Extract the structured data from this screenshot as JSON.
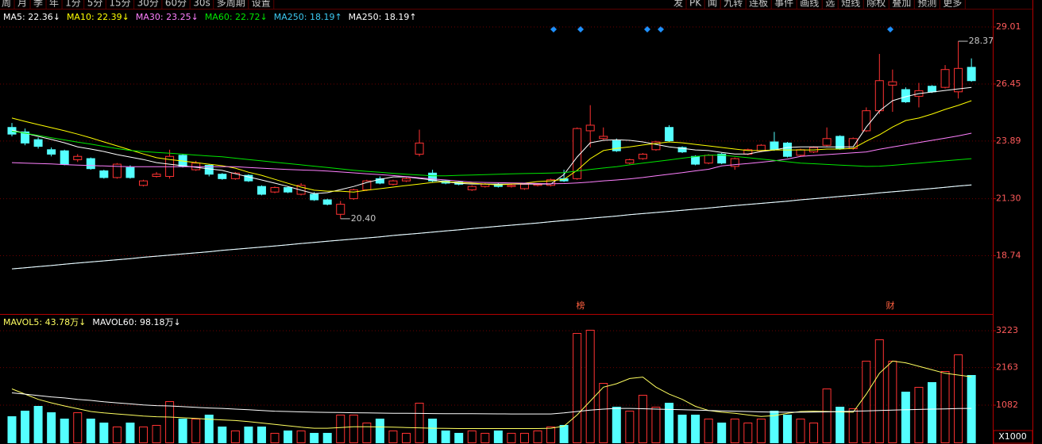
{
  "toolbar_left": [
    "周",
    "月",
    "季",
    "年",
    "1分",
    "5分",
    "15分",
    "30分",
    "60分",
    "30s",
    "多周期",
    "设置"
  ],
  "toolbar_right": [
    "发",
    "PK",
    "闻",
    "九转",
    "连板",
    "事件",
    "画线",
    "选",
    "短线",
    "除权",
    "叠加",
    "预测",
    "更多"
  ],
  "chart_data": [
    {
      "type": "candlestick",
      "up_color": "#ff3232",
      "down_color": "#54ffff",
      "ylim": [
        16.16,
        29.51
      ],
      "yticks": [
        {
          "value": 29.01,
          "label": "29.01"
        },
        26.45,
        23.89,
        {
          "value": 21.3,
          "label": "21.30"
        },
        18.74
      ],
      "grid": true,
      "open": [
        24.5,
        24.3,
        23.95,
        23.5,
        23.45,
        23.05,
        23.1,
        22.55,
        22.25,
        22.7,
        21.9,
        22.3,
        22.3,
        23.25,
        22.6,
        22.8,
        22.4,
        22.2,
        22.35,
        21.85,
        21.6,
        21.8,
        21.5,
        21.5,
        21.25,
        20.6,
        21.3,
        21.7,
        22.2,
        21.95,
        22.1,
        23.3,
        22.45,
        22.1,
        22.05,
        21.7,
        21.85,
        21.95,
        21.85,
        21.75,
        21.9,
        21.9,
        22.2,
        22.2,
        24.35,
        24.0,
        23.9,
        22.9,
        23.1,
        23.5,
        24.5,
        23.6,
        23.2,
        22.9,
        23.3,
        22.75,
        23.3,
        23.45,
        23.85,
        23.8,
        23.25,
        23.4,
        23.7,
        24.1,
        23.55,
        24.35,
        25.25,
        26.4,
        26.2,
        25.9,
        26.35,
        26.3,
        26.1,
        27.2
      ],
      "high": [
        24.7,
        24.45,
        24.05,
        23.6,
        23.5,
        23.3,
        23.15,
        22.6,
        22.9,
        22.8,
        22.15,
        22.5,
        23.5,
        23.3,
        23.0,
        22.85,
        22.45,
        22.5,
        22.4,
        21.9,
        21.85,
        21.85,
        22.0,
        21.6,
        21.3,
        21.2,
        21.75,
        22.15,
        22.3,
        22.15,
        22.25,
        24.4,
        22.6,
        22.15,
        22.1,
        21.9,
        22.0,
        22.0,
        21.95,
        22.0,
        22.0,
        22.2,
        22.6,
        24.5,
        25.5,
        24.5,
        24.0,
        23.1,
        23.35,
        23.9,
        24.6,
        23.65,
        23.25,
        23.3,
        23.35,
        23.15,
        23.55,
        23.75,
        24.3,
        23.85,
        23.55,
        23.65,
        24.5,
        24.15,
        24.05,
        25.4,
        27.8,
        27.1,
        26.3,
        26.5,
        26.4,
        27.3,
        28.37,
        27.6
      ],
      "low": [
        24.1,
        23.7,
        23.55,
        23.2,
        22.8,
        22.95,
        22.6,
        22.2,
        22.2,
        22.2,
        21.85,
        22.25,
        22.2,
        22.7,
        22.55,
        22.3,
        22.15,
        22.15,
        22.05,
        21.45,
        21.55,
        21.55,
        21.45,
        21.2,
        21.0,
        20.4,
        21.25,
        21.65,
        21.95,
        21.9,
        22.05,
        23.2,
        22.05,
        21.95,
        21.9,
        21.65,
        21.8,
        21.8,
        21.8,
        21.7,
        21.85,
        21.85,
        22.05,
        22.15,
        23.6,
        23.95,
        23.4,
        22.85,
        23.05,
        23.45,
        23.85,
        23.35,
        22.8,
        22.85,
        22.85,
        22.6,
        23.25,
        23.4,
        23.45,
        23.15,
        23.2,
        23.35,
        23.65,
        23.5,
        23.5,
        24.3,
        25.1,
        25.2,
        25.6,
        25.4,
        26.05,
        26.25,
        25.8,
        26.55
      ],
      "close": [
        24.2,
        23.8,
        23.65,
        23.3,
        22.85,
        23.2,
        22.65,
        22.25,
        22.85,
        22.25,
        22.1,
        22.4,
        23.2,
        22.75,
        22.9,
        22.4,
        22.2,
        22.45,
        22.1,
        21.5,
        21.8,
        21.6,
        21.9,
        21.25,
        21.05,
        21.05,
        21.7,
        22.1,
        22.0,
        22.1,
        22.2,
        23.8,
        22.1,
        22.0,
        21.95,
        21.85,
        21.95,
        21.85,
        21.9,
        21.95,
        21.95,
        22.15,
        22.1,
        24.45,
        24.6,
        24.1,
        23.45,
        23.05,
        23.3,
        23.85,
        23.9,
        23.4,
        22.85,
        23.25,
        22.9,
        23.1,
        23.5,
        23.7,
        23.5,
        23.2,
        23.5,
        23.6,
        24.0,
        23.55,
        24.0,
        25.25,
        26.6,
        26.55,
        25.65,
        26.15,
        26.1,
        27.1,
        27.15,
        26.6
      ],
      "high_label": 28.37,
      "low_label": {
        "value": 20.4,
        "label": "20.40"
      },
      "markers": [
        "榜",
        "财"
      ],
      "series": [
        {
          "name": "MA5: 22.36↓",
          "color": "#ffffff",
          "values": [
            24.38,
            24.24,
            24.1,
            23.96,
            23.81,
            23.63,
            23.53,
            23.42,
            23.28,
            23.17,
            23.06,
            22.92,
            22.85,
            22.78,
            22.71,
            22.64,
            22.57,
            22.42,
            22.28,
            22.14,
            22.0,
            21.85,
            21.68,
            21.53,
            21.57,
            21.71,
            21.85,
            22.03,
            22.17,
            22.28,
            22.28,
            22.21,
            22.14,
            22.06,
            21.99,
            21.96,
            21.96,
            21.96,
            21.96,
            21.96,
            21.96,
            21.96,
            22.39,
            23.17,
            23.81,
            23.92,
            23.95,
            23.92,
            23.85,
            23.74,
            23.63,
            23.56,
            23.49,
            23.46,
            23.38,
            23.31,
            23.31,
            23.42,
            23.49,
            23.6,
            23.63,
            23.63,
            23.63,
            23.63,
            23.63,
            24.52,
            25.24,
            25.7,
            25.88,
            26.02,
            26.09,
            26.16,
            26.23,
            26.3
          ]
        },
        {
          "name": "MA10: 22.39↓",
          "color": "#ffff00",
          "values": [
            24.92,
            24.77,
            24.63,
            24.49,
            24.35,
            24.2,
            24.03,
            23.85,
            23.67,
            23.49,
            23.31,
            23.14,
            23.06,
            22.99,
            22.92,
            22.85,
            22.78,
            22.67,
            22.49,
            22.35,
            22.17,
            21.99,
            21.82,
            21.68,
            21.64,
            21.64,
            21.6,
            21.68,
            21.75,
            21.82,
            21.89,
            21.96,
            22.03,
            22.07,
            22.03,
            22.0,
            21.96,
            21.92,
            21.96,
            22.0,
            22.07,
            22.1,
            22.17,
            22.57,
            23.1,
            23.46,
            23.56,
            23.63,
            23.71,
            23.78,
            23.85,
            23.81,
            23.74,
            23.67,
            23.6,
            23.53,
            23.46,
            23.46,
            23.49,
            23.49,
            23.49,
            23.49,
            23.53,
            23.53,
            23.56,
            23.88,
            24.17,
            24.52,
            24.81,
            24.92,
            25.1,
            25.31,
            25.49,
            25.7
          ]
        },
        {
          "name": "MA30: 23.25↓",
          "color": "#ff80ff",
          "values": [
            22.92,
            22.9,
            22.88,
            22.86,
            22.83,
            22.81,
            22.79,
            22.77,
            22.75,
            22.74,
            22.74,
            22.74,
            22.74,
            22.74,
            22.74,
            22.74,
            22.74,
            22.74,
            22.7,
            22.67,
            22.64,
            22.61,
            22.59,
            22.57,
            22.54,
            22.5,
            22.46,
            22.42,
            22.38,
            22.34,
            22.29,
            22.24,
            22.19,
            22.14,
            22.09,
            22.04,
            22.03,
            22.02,
            22.01,
            22.0,
            21.98,
            21.97,
            21.98,
            22.01,
            22.05,
            22.1,
            22.14,
            22.19,
            22.25,
            22.33,
            22.4,
            22.47,
            22.55,
            22.62,
            22.77,
            22.83,
            22.88,
            22.94,
            23.0,
            23.08,
            23.2,
            23.24,
            23.28,
            23.32,
            23.36,
            23.4,
            23.52,
            23.62,
            23.72,
            23.82,
            23.92,
            24.02,
            24.12,
            24.24
          ]
        },
        {
          "name": "MA60: 22.72↓",
          "color": "#00e600",
          "values": [
            24.33,
            24.24,
            24.14,
            24.04,
            23.94,
            23.84,
            23.75,
            23.65,
            23.55,
            23.47,
            23.42,
            23.38,
            23.34,
            23.3,
            23.26,
            23.22,
            23.18,
            23.12,
            23.06,
            23.0,
            22.94,
            22.88,
            22.82,
            22.76,
            22.7,
            22.64,
            22.58,
            22.53,
            22.49,
            22.44,
            22.4,
            22.36,
            22.33,
            22.33,
            22.35,
            22.36,
            22.38,
            22.4,
            22.42,
            22.43,
            22.44,
            22.45,
            22.47,
            22.54,
            22.61,
            22.68,
            22.74,
            22.82,
            22.9,
            22.97,
            23.04,
            23.12,
            23.19,
            23.26,
            23.26,
            23.2,
            23.14,
            23.08,
            23.02,
            22.96,
            22.9,
            22.87,
            22.84,
            22.81,
            22.78,
            22.75,
            22.76,
            22.8,
            22.85,
            22.9,
            22.95,
            23.0,
            23.05,
            23.1
          ]
        },
        {
          "name": "MA250: 18.19↑",
          "color": "#3cc8f0",
          "values": [
            18.15,
            18.2,
            18.25,
            18.3,
            18.36,
            18.41,
            18.46,
            18.51,
            18.56,
            18.61,
            18.67,
            18.72,
            18.77,
            18.82,
            18.87,
            18.92,
            18.98,
            19.03,
            19.08,
            19.13,
            19.18,
            19.23,
            19.29,
            19.34,
            19.39,
            19.44,
            19.49,
            19.54,
            19.59,
            19.65,
            19.7,
            19.75,
            19.8,
            19.85,
            19.9,
            19.96,
            20.01,
            20.06,
            20.11,
            20.16,
            20.21,
            20.27,
            20.32,
            20.37,
            20.42,
            20.47,
            20.52,
            20.58,
            20.63,
            20.68,
            20.73,
            20.78,
            20.83,
            20.88,
            20.94,
            20.99,
            21.04,
            21.09,
            21.14,
            21.19,
            21.25,
            21.3,
            21.35,
            21.4,
            21.45,
            21.5,
            21.56,
            21.61,
            21.66,
            21.71,
            21.76,
            21.81,
            21.87,
            21.92
          ]
        },
        {
          "name": "MA250: 18.19↑",
          "color": "#ffffff",
          "values": [
            18.15,
            18.2,
            18.25,
            18.3,
            18.36,
            18.41,
            18.46,
            18.51,
            18.56,
            18.61,
            18.67,
            18.72,
            18.77,
            18.82,
            18.87,
            18.92,
            18.98,
            19.03,
            19.08,
            19.13,
            19.18,
            19.23,
            19.29,
            19.34,
            19.39,
            19.44,
            19.49,
            19.54,
            19.59,
            19.65,
            19.7,
            19.75,
            19.8,
            19.85,
            19.9,
            19.96,
            20.01,
            20.06,
            20.11,
            20.16,
            20.21,
            20.27,
            20.32,
            20.37,
            20.42,
            20.47,
            20.52,
            20.58,
            20.63,
            20.68,
            20.73,
            20.78,
            20.83,
            20.88,
            20.94,
            20.99,
            21.04,
            21.09,
            21.14,
            21.19,
            21.25,
            21.3,
            21.35,
            21.4,
            21.45,
            21.5,
            21.56,
            21.61,
            21.66,
            21.71,
            21.76,
            21.81,
            21.87,
            21.92
          ]
        }
      ]
    },
    {
      "type": "bar",
      "unit_label": "X1000",
      "ylim": [
        0,
        3660
      ],
      "yticks": [
        3223,
        2163,
        1082
      ],
      "grid": true,
      "values": [
        752,
        912,
        1049,
        866,
        684,
        866,
        684,
        570,
        456,
        570,
        456,
        502,
        1186,
        684,
        684,
        798,
        456,
        342,
        456,
        456,
        274,
        342,
        342,
        274,
        274,
        798,
        798,
        570,
        684,
        342,
        274,
        1140,
        684,
        342,
        274,
        342,
        274,
        342,
        274,
        274,
        342,
        456,
        502,
        3146,
        3238,
        1710,
        1026,
        912,
        1368,
        1026,
        1140,
        798,
        798,
        684,
        570,
        684,
        570,
        684,
        912,
        798,
        684,
        570,
        1550,
        1026,
        980,
        2348,
        2964,
        2348,
        1459,
        1596,
        1733,
        2052,
        2531,
        1938
      ],
      "series": [
        {
          "name": "MAVOL5: 43.78万↓",
          "color": "#ffff60",
          "values": [
            1550,
            1400,
            1250,
            1150,
            1060,
            980,
            900,
            860,
            830,
            800,
            770,
            750,
            740,
            720,
            700,
            680,
            660,
            640,
            610,
            570,
            530,
            490,
            450,
            420,
            420,
            440,
            460,
            460,
            455,
            450,
            440,
            430,
            420,
            415,
            410,
            410,
            410,
            410,
            410,
            410,
            410,
            420,
            480,
            800,
            1200,
            1600,
            1700,
            1850,
            1890,
            1600,
            1400,
            1250,
            1050,
            930,
            880,
            850,
            800,
            760,
            780,
            850,
            900,
            910,
            900,
            890,
            880,
            1400,
            2000,
            2350,
            2300,
            2200,
            2100,
            2000,
            1950,
            1900
          ]
        },
        {
          "name": "MAVOL60: 98.18万↓",
          "color": "#ffffff",
          "values": [
            1436,
            1400,
            1360,
            1320,
            1290,
            1250,
            1220,
            1180,
            1150,
            1120,
            1090,
            1070,
            1060,
            1040,
            1020,
            1000,
            990,
            970,
            950,
            930,
            910,
            900,
            890,
            880,
            875,
            870,
            865,
            860,
            855,
            850,
            848,
            845,
            842,
            840,
            838,
            836,
            834,
            832,
            830,
            830,
            830,
            830,
            860,
            900,
            940,
            970,
            990,
            990,
            980,
            970,
            960,
            950,
            940,
            930,
            920,
            910,
            900,
            890,
            885,
            880,
            880,
            882,
            890,
            900,
            910,
            920,
            930,
            940,
            950,
            960,
            970,
            975,
            985,
            990
          ]
        }
      ]
    }
  ]
}
